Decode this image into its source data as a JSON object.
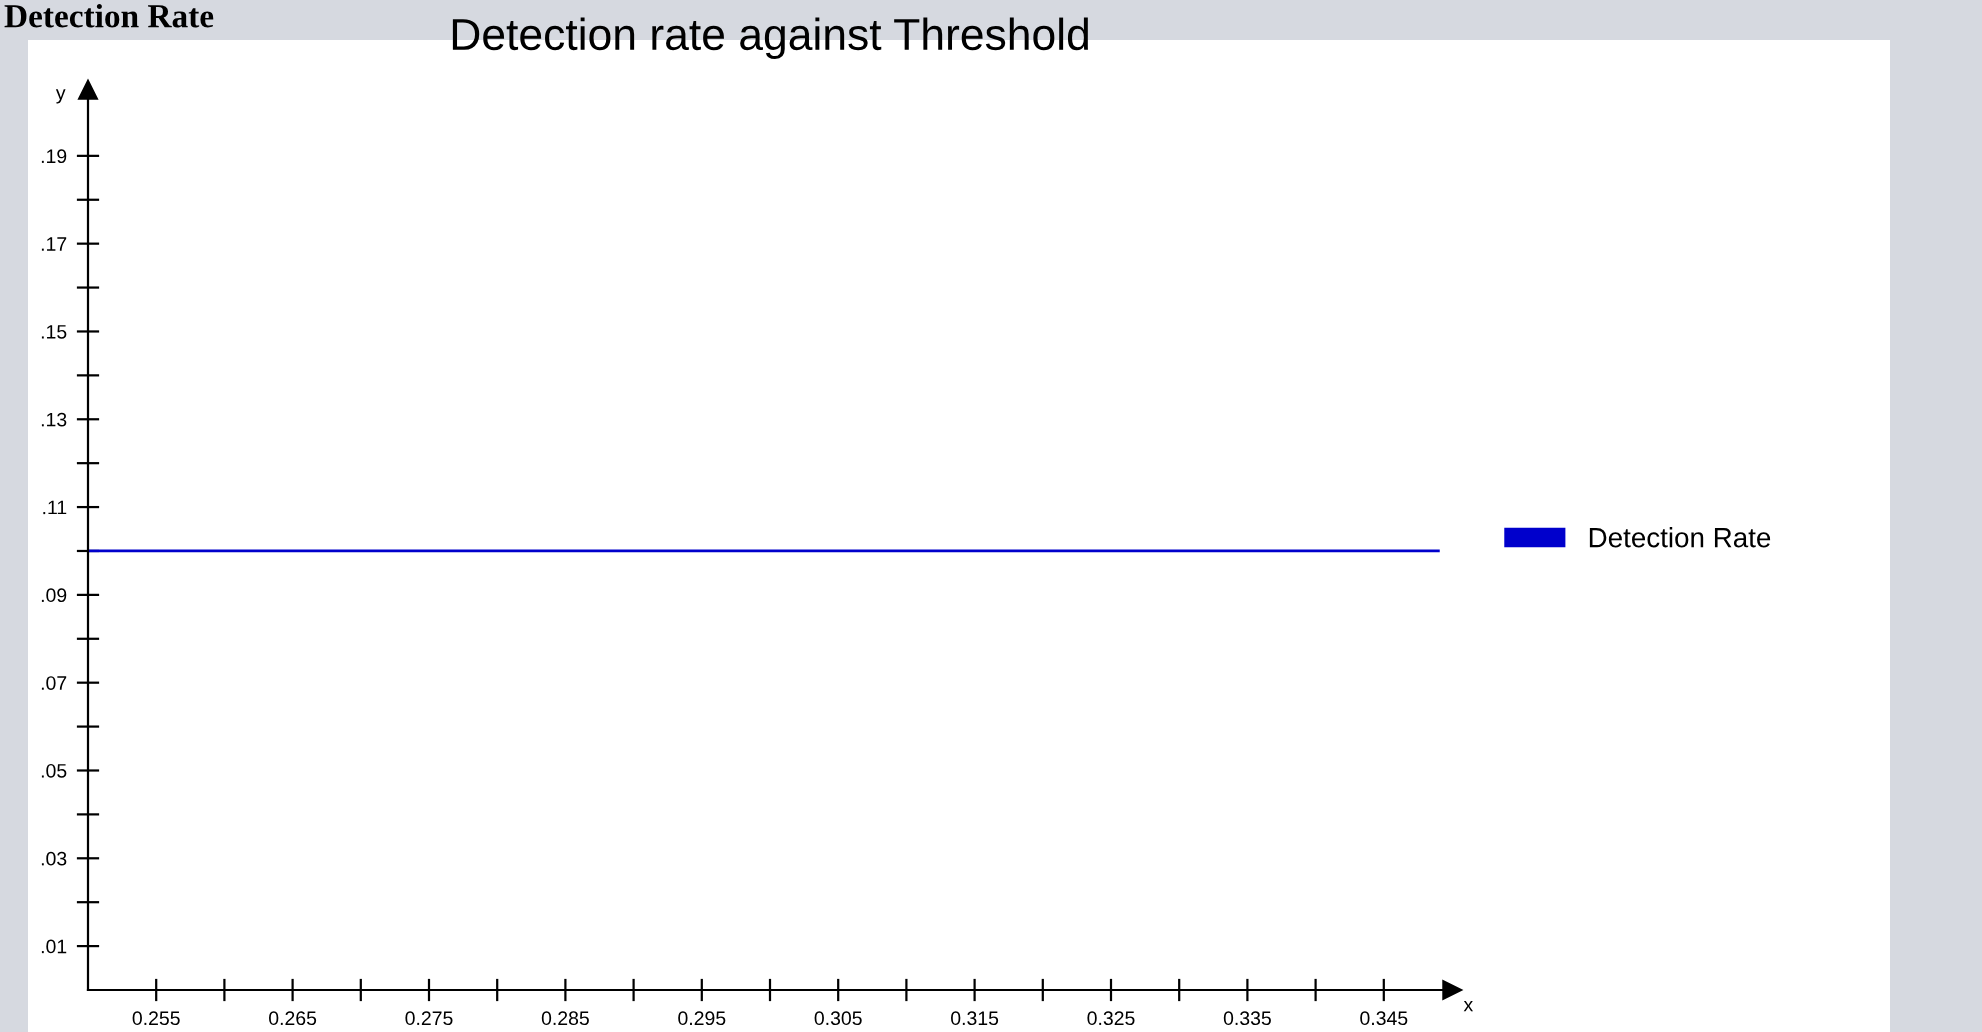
{
  "chart_data": {
    "type": "line",
    "title": "Detection rate against Threshold",
    "xlabel": "x",
    "ylabel": "y",
    "annotations": [
      "Detection Rate"
    ],
    "series": [
      {
        "name": "Detection Rate",
        "color": "#0000cc",
        "x": [
          0.25,
          0.349
        ],
        "values": [
          0.1,
          0.1
        ]
      }
    ],
    "xlim": [
      0.25,
      0.35
    ],
    "ylim": [
      0,
      0.205
    ],
    "xticks": [
      {
        "value": 0.255,
        "label": "0.255"
      },
      {
        "value": 0.26,
        "label": null
      },
      {
        "value": 0.265,
        "label": "0.265"
      },
      {
        "value": 0.27,
        "label": null
      },
      {
        "value": 0.275,
        "label": "0.275"
      },
      {
        "value": 0.28,
        "label": null
      },
      {
        "value": 0.285,
        "label": "0.285"
      },
      {
        "value": 0.29,
        "label": null
      },
      {
        "value": 0.295,
        "label": "0.295"
      },
      {
        "value": 0.3,
        "label": null
      },
      {
        "value": 0.305,
        "label": "0.305"
      },
      {
        "value": 0.31,
        "label": null
      },
      {
        "value": 0.315,
        "label": "0.315"
      },
      {
        "value": 0.32,
        "label": null
      },
      {
        "value": 0.325,
        "label": "0.325"
      },
      {
        "value": 0.33,
        "label": null
      },
      {
        "value": 0.335,
        "label": "0.335"
      },
      {
        "value": 0.34,
        "label": null
      },
      {
        "value": 0.345,
        "label": "0.345"
      }
    ],
    "yticks": [
      {
        "value": 0.01,
        "label": ".01"
      },
      {
        "value": 0.02,
        "label": null
      },
      {
        "value": 0.03,
        "label": ".03"
      },
      {
        "value": 0.04,
        "label": null
      },
      {
        "value": 0.05,
        "label": ".05"
      },
      {
        "value": 0.06,
        "label": null
      },
      {
        "value": 0.07,
        "label": ".07"
      },
      {
        "value": 0.08,
        "label": null
      },
      {
        "value": 0.09,
        "label": ".09"
      },
      {
        "value": 0.1,
        "label": null
      },
      {
        "value": 0.11,
        "label": ".11"
      },
      {
        "value": 0.12,
        "label": null
      },
      {
        "value": 0.13,
        "label": ".13"
      },
      {
        "value": 0.14,
        "label": null
      },
      {
        "value": 0.15,
        "label": ".15"
      },
      {
        "value": 0.16,
        "label": null
      },
      {
        "value": 0.17,
        "label": ".17"
      },
      {
        "value": 0.18,
        "label": null
      },
      {
        "value": 0.19,
        "label": ".19"
      }
    ],
    "grid": false,
    "legend": "right",
    "marker": "none",
    "line_style": "solid"
  }
}
